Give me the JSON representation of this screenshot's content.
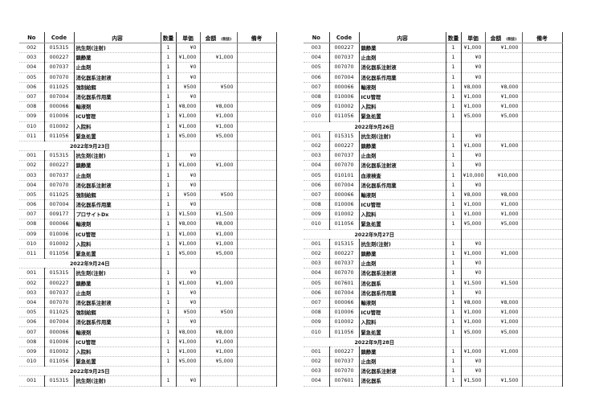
{
  "headers": {
    "no": "No",
    "code": "Code",
    "item": "内容",
    "qty": "数量",
    "price": "単価",
    "amount": "金額",
    "tax_note": "(税抜)",
    "remarks": "備考"
  },
  "pages": [
    {
      "rows": [
        [
          "002",
          "015315",
          "抗生剤(注射)",
          "1",
          "¥0",
          ""
        ],
        [
          "003",
          "000227",
          "鎮静薬",
          "1",
          "¥1,000",
          "¥1,000"
        ],
        [
          "004",
          "007037",
          "止血剤",
          "1",
          "¥0",
          ""
        ],
        [
          "005",
          "007070",
          "消化器系注射液",
          "1",
          "¥0",
          ""
        ],
        [
          "006",
          "011025",
          "強制給餌",
          "1",
          "¥500",
          "¥500"
        ],
        [
          "007",
          "007004",
          "消化器系作用薬",
          "1",
          "¥0",
          ""
        ],
        [
          "008",
          "000066",
          "輸液剤",
          "1",
          "¥8,000",
          "¥8,000"
        ],
        [
          "009",
          "010006",
          "ICU管理",
          "1",
          "¥1,000",
          "¥1,000"
        ],
        [
          "010",
          "010002",
          "入院料",
          "1",
          "¥1,000",
          "¥1,000"
        ],
        [
          "011",
          "011056",
          "緊急処置",
          "1",
          "¥5,000",
          "¥5,000"
        ],
        [
          "2022年9月23日"
        ],
        [
          "001",
          "015315",
          "抗生剤(注射)",
          "1",
          "¥0",
          ""
        ],
        [
          "002",
          "000227",
          "鎮静薬",
          "1",
          "¥1,000",
          "¥1,000"
        ],
        [
          "003",
          "007037",
          "止血剤",
          "1",
          "¥0",
          ""
        ],
        [
          "004",
          "007070",
          "消化器系注射液",
          "1",
          "¥0",
          ""
        ],
        [
          "005",
          "011025",
          "強制給餌",
          "1",
          "¥500",
          "¥500"
        ],
        [
          "006",
          "007004",
          "消化器系作用薬",
          "1",
          "¥0",
          ""
        ],
        [
          "007",
          "009177",
          "プロサイトDx",
          "1",
          "¥1,500",
          "¥1,500"
        ],
        [
          "008",
          "000066",
          "輸液剤",
          "1",
          "¥8,000",
          "¥8,000"
        ],
        [
          "009",
          "010006",
          "ICU管理",
          "1",
          "¥1,000",
          "¥1,000"
        ],
        [
          "010",
          "010002",
          "入院料",
          "1",
          "¥1,000",
          "¥1,000"
        ],
        [
          "011",
          "011056",
          "緊急処置",
          "1",
          "¥5,000",
          "¥5,000"
        ],
        [
          "2022年9月24日"
        ],
        [
          "001",
          "015315",
          "抗生剤(注射)",
          "1",
          "¥0",
          ""
        ],
        [
          "002",
          "000227",
          "鎮静薬",
          "1",
          "¥1,000",
          "¥1,000"
        ],
        [
          "003",
          "007037",
          "止血剤",
          "1",
          "¥0",
          ""
        ],
        [
          "004",
          "007070",
          "消化器系注射液",
          "1",
          "¥0",
          ""
        ],
        [
          "005",
          "011025",
          "強制給餌",
          "1",
          "¥500",
          "¥500"
        ],
        [
          "006",
          "007004",
          "消化器系作用薬",
          "1",
          "¥0",
          ""
        ],
        [
          "007",
          "000066",
          "輸液剤",
          "1",
          "¥8,000",
          "¥8,000"
        ],
        [
          "008",
          "010006",
          "ICU管理",
          "1",
          "¥1,000",
          "¥1,000"
        ],
        [
          "009",
          "010002",
          "入院料",
          "1",
          "¥1,000",
          "¥1,000"
        ],
        [
          "010",
          "011056",
          "緊急処置",
          "1",
          "¥5,000",
          "¥5,000"
        ],
        [
          "2022年9月25日"
        ],
        [
          "001",
          "015315",
          "抗生剤(注射)",
          "1",
          "¥0",
          ""
        ]
      ]
    },
    {
      "rows": [
        [
          "003",
          "000227",
          "鎮静薬",
          "1",
          "¥1,000",
          "¥1,000"
        ],
        [
          "004",
          "007037",
          "止血剤",
          "1",
          "¥0",
          ""
        ],
        [
          "005",
          "007070",
          "消化器系注射液",
          "1",
          "¥0",
          ""
        ],
        [
          "006",
          "007004",
          "消化器系作用薬",
          "1",
          "¥0",
          ""
        ],
        [
          "007",
          "000066",
          "輸液剤",
          "1",
          "¥8,000",
          "¥8,000"
        ],
        [
          "008",
          "010006",
          "ICU管理",
          "1",
          "¥1,000",
          "¥1,000"
        ],
        [
          "009",
          "010002",
          "入院料",
          "1",
          "¥1,000",
          "¥1,000"
        ],
        [
          "010",
          "011056",
          "緊急処置",
          "1",
          "¥5,000",
          "¥5,000"
        ],
        [
          "2022年9月26日"
        ],
        [
          "001",
          "015315",
          "抗生剤(注射)",
          "1",
          "¥0",
          ""
        ],
        [
          "002",
          "000227",
          "鎮静薬",
          "1",
          "¥1,000",
          "¥1,000"
        ],
        [
          "003",
          "007037",
          "止血剤",
          "1",
          "¥0",
          ""
        ],
        [
          "004",
          "007070",
          "消化器系注射液",
          "1",
          "¥0",
          ""
        ],
        [
          "005",
          "010101",
          "血液検査",
          "1",
          "¥10,000",
          "¥10,000"
        ],
        [
          "006",
          "007004",
          "消化器系作用薬",
          "1",
          "¥0",
          ""
        ],
        [
          "007",
          "000066",
          "輸液剤",
          "1",
          "¥8,000",
          "¥8,000"
        ],
        [
          "008",
          "010006",
          "ICU管理",
          "1",
          "¥1,000",
          "¥1,000"
        ],
        [
          "009",
          "010002",
          "入院料",
          "1",
          "¥1,000",
          "¥1,000"
        ],
        [
          "010",
          "011056",
          "緊急処置",
          "1",
          "¥5,000",
          "¥5,000"
        ],
        [
          "2022年9月27日"
        ],
        [
          "001",
          "015315",
          "抗生剤(注射)",
          "1",
          "¥0",
          ""
        ],
        [
          "002",
          "000227",
          "鎮静薬",
          "1",
          "¥1,000",
          "¥1,000"
        ],
        [
          "003",
          "007037",
          "止血剤",
          "1",
          "¥0",
          ""
        ],
        [
          "004",
          "007070",
          "消化器系注射液",
          "1",
          "¥0",
          ""
        ],
        [
          "005",
          "007601",
          "消化器系",
          "1",
          "¥1,500",
          "¥1,500"
        ],
        [
          "006",
          "007004",
          "消化器系作用薬",
          "1",
          "¥0",
          ""
        ],
        [
          "007",
          "000066",
          "輸液剤",
          "1",
          "¥8,000",
          "¥8,000"
        ],
        [
          "008",
          "010006",
          "ICU管理",
          "1",
          "¥1,000",
          "¥1,000"
        ],
        [
          "009",
          "010002",
          "入院料",
          "1",
          "¥1,000",
          "¥1,000"
        ],
        [
          "010",
          "011056",
          "緊急処置",
          "1",
          "¥5,000",
          "¥5,000"
        ],
        [
          "2022年9月28日"
        ],
        [
          "001",
          "000227",
          "鎮静薬",
          "1",
          "¥1,000",
          "¥1,000"
        ],
        [
          "002",
          "007037",
          "止血剤",
          "1",
          "¥0",
          ""
        ],
        [
          "003",
          "007070",
          "消化器系注射液",
          "1",
          "¥0",
          ""
        ],
        [
          "004",
          "007601",
          "消化器系",
          "1",
          "¥1,500",
          "¥1,500"
        ]
      ]
    }
  ]
}
